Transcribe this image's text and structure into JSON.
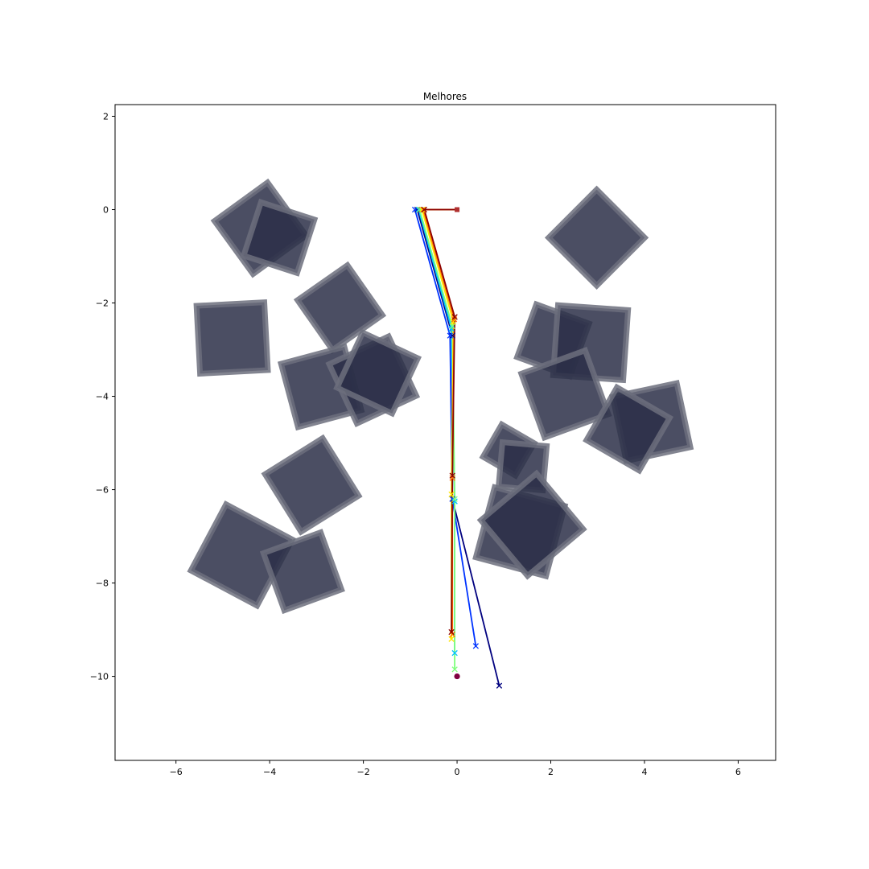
{
  "chart_data": {
    "type": "scatter",
    "title": "Melhores",
    "xlabel": "",
    "ylabel": "",
    "xlim": [
      -7.3,
      6.8
    ],
    "ylim": [
      -11.8,
      2.25
    ],
    "xticks": [
      -6,
      -4,
      -2,
      0,
      2,
      4,
      6
    ],
    "yticks": [
      2,
      0,
      -2,
      -4,
      -6,
      -8,
      -10
    ],
    "xtick_labels": [
      "−6",
      "−4",
      "−2",
      "0",
      "2",
      "4",
      "6"
    ],
    "ytick_labels": [
      "2",
      "0",
      "−2",
      "−4",
      "−6",
      "−8",
      "−10"
    ],
    "grid": false,
    "legend": "none",
    "obstacles": [
      {
        "center": [
          -4.2,
          -0.4
        ],
        "size": 1.4,
        "angle": 36
      },
      {
        "center": [
          -3.8,
          -0.6
        ],
        "size": 1.2,
        "angle": -18
      },
      {
        "center": [
          -2.5,
          -2.1
        ],
        "size": 1.3,
        "angle": 35
      },
      {
        "center": [
          -4.8,
          -2.75
        ],
        "size": 1.45,
        "angle": 3
      },
      {
        "center": [
          -2.9,
          -3.8
        ],
        "size": 1.4,
        "angle": 15
      },
      {
        "center": [
          -1.8,
          -3.65
        ],
        "size": 1.4,
        "angle": 25
      },
      {
        "center": [
          -1.7,
          -3.5
        ],
        "size": 1.3,
        "angle": -25
      },
      {
        "center": [
          -3.1,
          -5.9
        ],
        "size": 1.45,
        "angle": 32
      },
      {
        "center": [
          -4.6,
          -7.4
        ],
        "size": 1.6,
        "angle": -28
      },
      {
        "center": [
          -3.3,
          -7.75
        ],
        "size": 1.3,
        "angle": 20
      },
      {
        "center": [
          2.98,
          -0.6
        ],
        "size": 1.45,
        "angle": 45
      },
      {
        "center": [
          2.05,
          -2.8
        ],
        "size": 1.2,
        "angle": -20
      },
      {
        "center": [
          2.85,
          -2.85
        ],
        "size": 1.5,
        "angle": -4
      },
      {
        "center": [
          2.3,
          -3.95
        ],
        "size": 1.45,
        "angle": 20
      },
      {
        "center": [
          4.15,
          -4.55
        ],
        "size": 1.4,
        "angle": 12
      },
      {
        "center": [
          3.65,
          -4.7
        ],
        "size": 1.3,
        "angle": -30
      },
      {
        "center": [
          1.1,
          -5.15
        ],
        "size": 0.8,
        "angle": -30
      },
      {
        "center": [
          1.4,
          -5.5
        ],
        "size": 0.95,
        "angle": -5
      },
      {
        "center": [
          1.35,
          -6.9
        ],
        "size": 1.55,
        "angle": -15
      },
      {
        "center": [
          1.6,
          -6.75
        ],
        "size": 1.55,
        "angle": 40
      }
    ],
    "obstacle_fill": "#2b2f48",
    "obstacle_fill_opacity": 0.85,
    "obstacle_edge": "#6c6e7d",
    "obstacle_edge_opacity": 0.85,
    "start": {
      "x": 0.0,
      "y": 0.0,
      "color": "#b03030"
    },
    "goal": {
      "x": 0.0,
      "y": -10.0,
      "color": "#800040"
    },
    "series": [
      {
        "color": "#00007f",
        "points": [
          [
            0,
            0
          ],
          [
            -0.85,
            0
          ],
          [
            -0.1,
            -2.7
          ],
          [
            -0.1,
            -6.2
          ],
          [
            0.9,
            -10.2
          ]
        ]
      },
      {
        "color": "#0033ff",
        "points": [
          [
            0,
            0
          ],
          [
            -0.9,
            0
          ],
          [
            -0.15,
            -2.7
          ],
          [
            -0.1,
            -6.2
          ],
          [
            0.4,
            -9.35
          ]
        ]
      },
      {
        "color": "#00bfff",
        "points": [
          [
            0,
            0
          ],
          [
            -0.82,
            0
          ],
          [
            -0.12,
            -2.55
          ],
          [
            -0.05,
            -6.25
          ],
          [
            -0.05,
            -9.5
          ]
        ]
      },
      {
        "color": "#7dff7a",
        "points": [
          [
            0,
            0
          ],
          [
            -0.8,
            0
          ],
          [
            -0.1,
            -2.5
          ],
          [
            -0.05,
            -6.2
          ],
          [
            -0.05,
            -9.85
          ]
        ]
      },
      {
        "color": "#ffe600",
        "points": [
          [
            0,
            0
          ],
          [
            -0.75,
            0
          ],
          [
            -0.08,
            -2.4
          ],
          [
            -0.12,
            -6.1
          ],
          [
            -0.12,
            -9.2
          ]
        ]
      },
      {
        "color": "#ff6a00",
        "points": [
          [
            0,
            0
          ],
          [
            -0.72,
            0
          ],
          [
            -0.06,
            -2.35
          ],
          [
            -0.1,
            -5.75
          ],
          [
            -0.1,
            -9.1
          ]
        ]
      },
      {
        "color": "#8b0000",
        "points": [
          [
            0,
            0
          ],
          [
            -0.7,
            0
          ],
          [
            -0.05,
            -2.3
          ],
          [
            -0.1,
            -5.7
          ],
          [
            -0.12,
            -9.05
          ]
        ]
      }
    ]
  }
}
